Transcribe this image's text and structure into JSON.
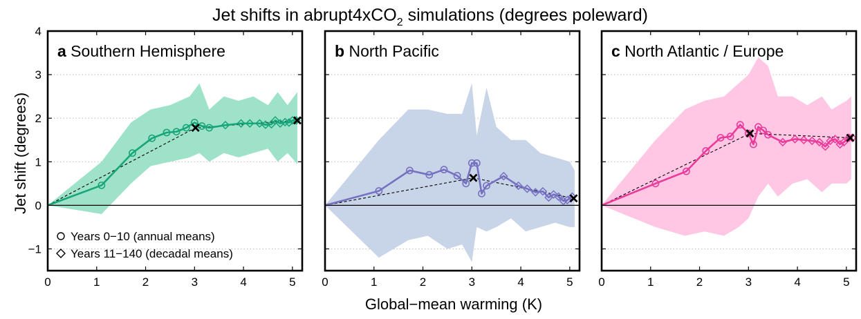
{
  "figure": {
    "title": "Jet shifts in abrupt4xCO",
    "title_subscript": "2",
    "title_suffix": " simulations (degrees poleward)",
    "xlabel": "Global−mean warming (K)",
    "ylabel": "Jet shift (degrees)",
    "legend": {
      "annual": "Years 0−10 (annual means)",
      "decadal": "Years 11−140 (decadal means)"
    }
  },
  "chart_data": [
    {
      "type": "line",
      "panel_letter": "a",
      "panel_title": "Southern Hemisphere",
      "color": "#17a579",
      "band_color": "#9ee2c9",
      "xlim": [
        0,
        5.2
      ],
      "ylim": [
        -1.5,
        4
      ],
      "xticks": [
        "0",
        "1",
        "2",
        "3",
        "4",
        "5"
      ],
      "yticks": [
        "−1",
        "0",
        "1",
        "2",
        "3",
        "4"
      ],
      "ytick_values": [
        -1,
        0,
        1,
        2,
        3,
        4
      ],
      "grid": "horizontal dotted",
      "annual": {
        "x": [
          0,
          1.1,
          1.73,
          2.13,
          2.43,
          2.63,
          2.83,
          3.0,
          3.15,
          3.3
        ],
        "y": [
          0,
          0.46,
          1.2,
          1.54,
          1.67,
          1.69,
          1.78,
          1.9,
          1.82,
          1.78
        ]
      },
      "decadal": {
        "x": [
          3.3,
          3.63,
          3.95,
          4.13,
          4.33,
          4.45,
          4.57,
          4.65,
          4.75,
          4.85,
          4.93,
          5.0,
          5.08
        ],
        "y": [
          1.78,
          1.84,
          1.88,
          1.88,
          1.88,
          1.85,
          1.86,
          1.95,
          1.88,
          1.91,
          1.9,
          1.95,
          1.95
        ]
      },
      "fit_line": {
        "x": [
          0,
          3.02,
          5.1
        ],
        "y": [
          0,
          1.78,
          1.95
        ]
      },
      "crosses": {
        "x": [
          3.02,
          5.1
        ],
        "y": [
          1.78,
          1.95
        ]
      },
      "band": {
        "x": [
          0,
          1.1,
          1.7,
          2.1,
          2.5,
          2.9,
          3.1,
          3.3,
          3.6,
          3.9,
          4.2,
          4.5,
          4.7,
          4.9,
          5.1
        ],
        "upper": [
          0,
          1.0,
          1.9,
          2.2,
          2.3,
          2.5,
          2.8,
          2.2,
          2.5,
          2.4,
          2.5,
          2.3,
          2.6,
          2.3,
          2.6
        ],
        "lower": [
          0,
          -0.2,
          0.5,
          0.9,
          1.0,
          1.1,
          1.2,
          1.0,
          1.2,
          1.1,
          1.2,
          1.3,
          1.0,
          1.2,
          0.95
        ]
      }
    },
    {
      "type": "line",
      "panel_letter": "b",
      "panel_title": "North Pacific",
      "color": "#7570c0",
      "band_color": "#c8d4e8",
      "xlim": [
        0,
        5.2
      ],
      "ylim": [
        -1.5,
        4
      ],
      "xticks": [
        "0",
        "1",
        "2",
        "3",
        "4",
        "5"
      ],
      "yticks": [],
      "ytick_values": [
        -1,
        0,
        1,
        2,
        3,
        4
      ],
      "grid": "horizontal dotted",
      "annual": {
        "x": [
          0,
          1.1,
          1.73,
          2.13,
          2.43,
          2.7,
          2.88,
          3.0,
          3.1,
          3.2,
          3.3
        ],
        "y": [
          0,
          0.33,
          0.8,
          0.7,
          0.82,
          0.68,
          0.5,
          0.97,
          0.97,
          0.27,
          0.45
        ]
      },
      "decadal": {
        "x": [
          3.3,
          3.65,
          3.95,
          4.13,
          4.3,
          4.45,
          4.57,
          4.67,
          4.77,
          4.87,
          4.95,
          5.05
        ],
        "y": [
          0.45,
          0.67,
          0.45,
          0.38,
          0.3,
          0.32,
          0.18,
          0.25,
          0.2,
          0.1,
          0.12,
          0.2
        ]
      },
      "fit_line": {
        "x": [
          0,
          3.03,
          5.08
        ],
        "y": [
          0,
          0.63,
          0.16
        ]
      },
      "crosses": {
        "x": [
          3.03,
          5.08
        ],
        "y": [
          0.63,
          0.16
        ]
      },
      "band": {
        "x": [
          0,
          1.1,
          1.7,
          2.1,
          2.5,
          2.8,
          3.0,
          3.1,
          3.3,
          3.5,
          3.8,
          4.1,
          4.4,
          4.7,
          5.0,
          5.1
        ],
        "upper": [
          0,
          1.5,
          2.2,
          2.2,
          2.1,
          2.1,
          2.8,
          1.6,
          2.7,
          1.8,
          1.5,
          1.5,
          1.2,
          1.1,
          1.0,
          0.8
        ],
        "lower": [
          0,
          -1.2,
          -0.8,
          -0.7,
          -1.0,
          -0.9,
          -1.3,
          -0.5,
          -0.6,
          -0.5,
          -0.3,
          -0.6,
          -0.5,
          -0.4,
          -0.5,
          -0.5
        ]
      }
    },
    {
      "type": "line",
      "panel_letter": "c",
      "panel_title": "North Atlantic / Europe",
      "color": "#ea3a9a",
      "band_color": "#ffc7e4",
      "xlim": [
        0,
        5.2
      ],
      "ylim": [
        -1.5,
        4
      ],
      "xticks": [
        "0",
        "1",
        "2",
        "3",
        "4",
        "5"
      ],
      "yticks": [],
      "ytick_values": [
        -1,
        0,
        1,
        2,
        3,
        4
      ],
      "grid": "horizontal dotted",
      "annual": {
        "x": [
          0,
          1.1,
          1.73,
          2.13,
          2.43,
          2.63,
          2.83,
          3.0,
          3.1,
          3.2,
          3.3,
          3.4
        ],
        "y": [
          0,
          0.5,
          0.78,
          1.25,
          1.55,
          1.58,
          1.85,
          1.65,
          1.4,
          1.8,
          1.72,
          1.62
        ]
      },
      "decadal": {
        "x": [
          3.4,
          3.7,
          3.95,
          4.13,
          4.3,
          4.45,
          4.57,
          4.67,
          4.77,
          4.87,
          4.95,
          5.05,
          5.12
        ],
        "y": [
          1.62,
          1.45,
          1.52,
          1.5,
          1.48,
          1.45,
          1.35,
          1.48,
          1.52,
          1.4,
          1.45,
          1.55,
          1.55
        ]
      },
      "fit_line": {
        "x": [
          0,
          3.03,
          5.08
        ],
        "y": [
          0,
          1.65,
          1.55
        ]
      },
      "crosses": {
        "x": [
          3.03,
          5.08
        ],
        "y": [
          1.65,
          1.55
        ]
      },
      "band": {
        "x": [
          0,
          1.1,
          1.7,
          2.1,
          2.5,
          2.8,
          3.0,
          3.2,
          3.4,
          3.6,
          3.9,
          4.2,
          4.5,
          4.7,
          5.0,
          5.1
        ],
        "upper": [
          0,
          1.5,
          2.2,
          2.4,
          2.5,
          2.8,
          3.0,
          3.4,
          3.2,
          2.5,
          2.5,
          2.3,
          2.5,
          2.2,
          2.4,
          2.5
        ],
        "lower": [
          0,
          -0.5,
          -0.7,
          -0.6,
          -0.7,
          -0.5,
          -0.3,
          0.2,
          0.5,
          0.2,
          0.5,
          0.6,
          0.3,
          0.5,
          0.5,
          0.6
        ]
      }
    }
  ]
}
